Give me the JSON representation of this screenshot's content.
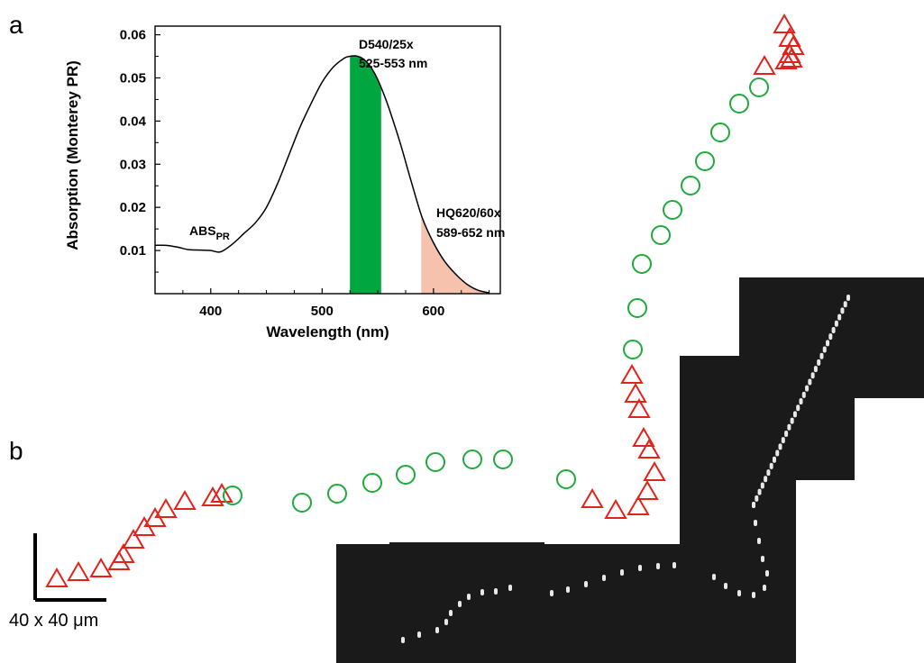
{
  "figure": {
    "panel_a_label": "a",
    "panel_b_label": "b",
    "scale_bar_text": "40 x 40 μm"
  },
  "chart_data": {
    "type": "line",
    "xlabel": "Wavelength (nm)",
    "ylabel": "Absorption (Monterey PR)",
    "xlim": [
      350,
      660
    ],
    "ylim": [
      0,
      0.062
    ],
    "xticks": [
      400,
      500,
      600
    ],
    "yticks": [
      0.01,
      0.02,
      0.03,
      0.04,
      0.05,
      0.06
    ],
    "ytick_labels": [
      "0.01",
      "0.02",
      "0.03",
      "0.04",
      "0.05",
      "0.06"
    ],
    "grid": false,
    "series": [
      {
        "label_main": "ABS",
        "label_sub": "PR",
        "x": [
          350,
          360,
          370,
          380,
          390,
          400,
          405,
          410,
          420,
          430,
          440,
          450,
          460,
          470,
          480,
          490,
          500,
          510,
          520,
          525,
          530,
          535,
          540,
          545,
          550,
          555,
          560,
          570,
          580,
          590,
          600,
          610,
          620,
          630,
          640,
          650
        ],
        "y": [
          0.0112,
          0.0112,
          0.0108,
          0.0102,
          0.0101,
          0.01,
          0.0097,
          0.0098,
          0.0116,
          0.014,
          0.0164,
          0.02,
          0.0255,
          0.032,
          0.0385,
          0.044,
          0.049,
          0.0525,
          0.0546,
          0.055,
          0.0551,
          0.0547,
          0.0537,
          0.052,
          0.0496,
          0.0465,
          0.043,
          0.035,
          0.026,
          0.0175,
          0.0118,
          0.0075,
          0.0045,
          0.0022,
          0.0008,
          0.0002
        ],
        "color": "#000000"
      }
    ],
    "bands": [
      {
        "label_line1": "D540/25x",
        "label_line2": "525-553 nm",
        "start": 525,
        "end": 553,
        "color": "#00a63f"
      },
      {
        "label_line1": "HQ620/60x",
        "label_line2": "589-652 nm",
        "start": 589,
        "end": 652,
        "color": "#f6c1ad"
      }
    ]
  },
  "track": {
    "triangle_color": "#e2231a",
    "circle_color": "#1faa3c",
    "image_bg": "#1a1a1a"
  }
}
